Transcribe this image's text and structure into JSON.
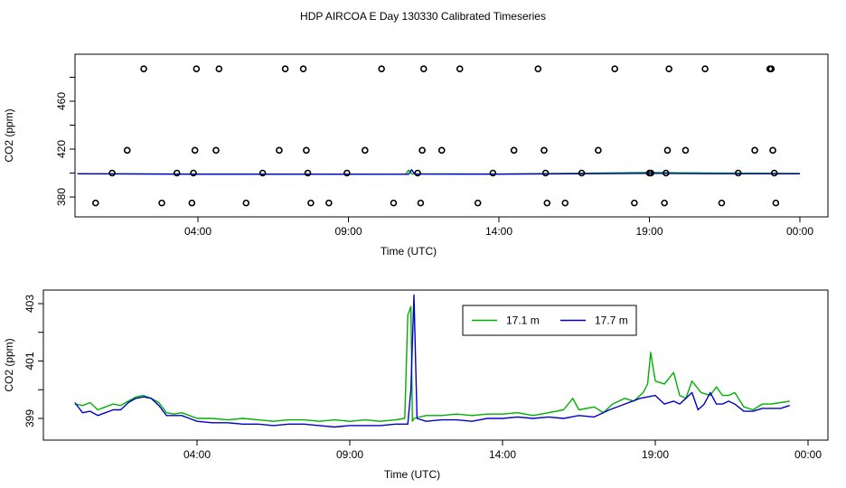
{
  "figure": {
    "title": "HDP AIRCOA E  Day 130330  Calibrated Timeseries"
  },
  "chart_data": [
    {
      "type": "line",
      "xlabel": "Time (UTC)",
      "ylabel": "CO2 (ppm)",
      "x_unit": "hours UTC",
      "xlim": [
        0,
        24
      ],
      "ylim": [
        370,
        490
      ],
      "x_ticks": [
        {
          "value": 4,
          "label": "04:00"
        },
        {
          "value": 9,
          "label": "09:00"
        },
        {
          "value": 14,
          "label": "14:00"
        },
        {
          "value": 19,
          "label": "19:00"
        },
        {
          "value": 24,
          "label": "00:00"
        }
      ],
      "y_ticks": [
        {
          "value": 380,
          "label": "380"
        },
        {
          "value": 420,
          "label": "420"
        },
        {
          "value": 460,
          "label": "460"
        }
      ],
      "grid": false,
      "series": [
        {
          "color": "#00b000",
          "values": [
            [
              0.0,
              399.5
            ],
            [
              4.0,
              399.2
            ],
            [
              10.9,
              399.0
            ],
            [
              11.0,
              402.5
            ],
            [
              11.1,
              399.3
            ],
            [
              14.0,
              399.2
            ],
            [
              16.0,
              399.6
            ],
            [
              19.0,
              400.5
            ],
            [
              21.0,
              400.0
            ],
            [
              24.0,
              399.6
            ]
          ]
        },
        {
          "color": "#0000cc",
          "values": [
            [
              0.0,
              399.4
            ],
            [
              4.0,
              399.0
            ],
            [
              11.0,
              399.0
            ],
            [
              11.1,
              402.8
            ],
            [
              11.2,
              399.2
            ],
            [
              14.0,
              399.1
            ],
            [
              19.0,
              399.8
            ],
            [
              21.0,
              399.5
            ],
            [
              24.0,
              399.4
            ]
          ]
        }
      ],
      "points": [
        {
          "x": 0.6,
          "y": 375
        },
        {
          "x": 1.15,
          "y": 400
        },
        {
          "x": 1.65,
          "y": 419
        },
        {
          "x": 2.2,
          "y": 487
        },
        {
          "x": 2.8,
          "y": 375
        },
        {
          "x": 3.3,
          "y": 400
        },
        {
          "x": 3.8,
          "y": 375
        },
        {
          "x": 3.85,
          "y": 400
        },
        {
          "x": 3.9,
          "y": 419
        },
        {
          "x": 3.95,
          "y": 487
        },
        {
          "x": 4.6,
          "y": 419
        },
        {
          "x": 4.7,
          "y": 487
        },
        {
          "x": 5.6,
          "y": 375
        },
        {
          "x": 6.15,
          "y": 400
        },
        {
          "x": 6.7,
          "y": 419
        },
        {
          "x": 6.9,
          "y": 487
        },
        {
          "x": 7.5,
          "y": 487
        },
        {
          "x": 7.6,
          "y": 419
        },
        {
          "x": 7.65,
          "y": 400
        },
        {
          "x": 7.75,
          "y": 375
        },
        {
          "x": 8.35,
          "y": 375
        },
        {
          "x": 8.95,
          "y": 400
        },
        {
          "x": 9.55,
          "y": 419
        },
        {
          "x": 10.1,
          "y": 487
        },
        {
          "x": 10.5,
          "y": 375
        },
        {
          "x": 11.3,
          "y": 400
        },
        {
          "x": 11.4,
          "y": 375
        },
        {
          "x": 11.45,
          "y": 419
        },
        {
          "x": 11.5,
          "y": 487
        },
        {
          "x": 12.1,
          "y": 419
        },
        {
          "x": 12.7,
          "y": 487
        },
        {
          "x": 13.3,
          "y": 375
        },
        {
          "x": 13.8,
          "y": 400
        },
        {
          "x": 14.5,
          "y": 419
        },
        {
          "x": 15.3,
          "y": 487
        },
        {
          "x": 15.5,
          "y": 419
        },
        {
          "x": 15.55,
          "y": 400
        },
        {
          "x": 15.6,
          "y": 375
        },
        {
          "x": 16.2,
          "y": 375
        },
        {
          "x": 16.75,
          "y": 400
        },
        {
          "x": 17.3,
          "y": 419
        },
        {
          "x": 17.85,
          "y": 487
        },
        {
          "x": 18.5,
          "y": 375
        },
        {
          "x": 19.05,
          "y": 400
        },
        {
          "x": 19.6,
          "y": 419
        },
        {
          "x": 19.65,
          "y": 487
        },
        {
          "x": 20.2,
          "y": 419
        },
        {
          "x": 20.85,
          "y": 487
        },
        {
          "x": 21.4,
          "y": 375
        },
        {
          "x": 21.95,
          "y": 400
        },
        {
          "x": 22.5,
          "y": 419
        },
        {
          "x": 23.0,
          "y": 487
        },
        {
          "x": 23.1,
          "y": 419
        },
        {
          "x": 23.15,
          "y": 400
        },
        {
          "x": 23.2,
          "y": 375
        },
        {
          "x": 19.0,
          "y": 400
        },
        {
          "x": 19.55,
          "y": 400
        },
        {
          "x": 19.5,
          "y": 375
        },
        {
          "x": 23.05,
          "y": 487
        }
      ]
    },
    {
      "type": "line",
      "xlabel": "Time (UTC)",
      "ylabel": "CO2 (ppm)",
      "x_unit": "hours UTC",
      "xlim": [
        0,
        24
      ],
      "ylim": [
        398.3,
        403.4
      ],
      "x_ticks": [
        {
          "value": 4,
          "label": "04:00"
        },
        {
          "value": 9,
          "label": "09:00"
        },
        {
          "value": 14,
          "label": "14:00"
        },
        {
          "value": 19,
          "label": "19:00"
        },
        {
          "value": 24,
          "label": "00:00"
        }
      ],
      "y_ticks": [
        {
          "value": 399,
          "label": "399"
        },
        {
          "value": 401,
          "label": "401"
        },
        {
          "value": 403,
          "label": "403"
        }
      ],
      "grid": false,
      "legend": {
        "position": "top-center",
        "entries": [
          {
            "label": "17.1 m",
            "color": "#00b000"
          },
          {
            "label": "17.7 m",
            "color": "#0000cc"
          }
        ]
      },
      "series": [
        {
          "name": "17.1 m",
          "color": "#00b000",
          "values": [
            [
              0.0,
              399.5
            ],
            [
              0.25,
              399.45
            ],
            [
              0.5,
              399.55
            ],
            [
              0.75,
              399.3
            ],
            [
              1.0,
              399.4
            ],
            [
              1.25,
              399.5
            ],
            [
              1.5,
              399.45
            ],
            [
              1.75,
              399.6
            ],
            [
              2.0,
              399.75
            ],
            [
              2.25,
              399.8
            ],
            [
              2.5,
              399.7
            ],
            [
              2.75,
              399.55
            ],
            [
              3.0,
              399.2
            ],
            [
              3.25,
              399.15
            ],
            [
              3.5,
              399.2
            ],
            [
              3.75,
              399.1
            ],
            [
              4.0,
              399.0
            ],
            [
              4.5,
              399.0
            ],
            [
              5.0,
              398.95
            ],
            [
              5.5,
              399.0
            ],
            [
              6.0,
              398.95
            ],
            [
              6.5,
              398.9
            ],
            [
              7.0,
              398.95
            ],
            [
              7.5,
              398.95
            ],
            [
              8.0,
              398.9
            ],
            [
              8.5,
              398.95
            ],
            [
              9.0,
              398.9
            ],
            [
              9.5,
              398.95
            ],
            [
              10.0,
              398.9
            ],
            [
              10.5,
              398.95
            ],
            [
              10.8,
              399.0
            ],
            [
              10.9,
              402.6
            ],
            [
              11.0,
              402.9
            ],
            [
              11.05,
              398.9
            ],
            [
              11.1,
              399.0
            ],
            [
              11.5,
              399.1
            ],
            [
              12.0,
              399.1
            ],
            [
              12.5,
              399.15
            ],
            [
              13.0,
              399.1
            ],
            [
              13.5,
              399.15
            ],
            [
              14.0,
              399.15
            ],
            [
              14.5,
              399.2
            ],
            [
              15.0,
              399.1
            ],
            [
              15.5,
              399.2
            ],
            [
              16.0,
              399.3
            ],
            [
              16.3,
              399.7
            ],
            [
              16.5,
              399.3
            ],
            [
              17.0,
              399.4
            ],
            [
              17.3,
              399.2
            ],
            [
              17.6,
              399.5
            ],
            [
              18.0,
              399.7
            ],
            [
              18.3,
              399.6
            ],
            [
              18.6,
              399.9
            ],
            [
              18.75,
              400.2
            ],
            [
              18.85,
              401.3
            ],
            [
              19.0,
              400.3
            ],
            [
              19.3,
              400.2
            ],
            [
              19.6,
              400.6
            ],
            [
              19.8,
              399.8
            ],
            [
              20.0,
              399.7
            ],
            [
              20.2,
              400.3
            ],
            [
              20.5,
              399.9
            ],
            [
              20.8,
              399.8
            ],
            [
              21.0,
              400.1
            ],
            [
              21.2,
              399.8
            ],
            [
              21.4,
              399.8
            ],
            [
              21.6,
              399.9
            ],
            [
              21.9,
              399.4
            ],
            [
              22.2,
              399.3
            ],
            [
              22.5,
              399.5
            ],
            [
              22.8,
              399.5
            ],
            [
              23.1,
              399.55
            ],
            [
              23.4,
              399.6
            ]
          ]
        },
        {
          "name": "17.7 m",
          "color": "#0000cc",
          "values": [
            [
              0.0,
              399.55
            ],
            [
              0.25,
              399.2
            ],
            [
              0.5,
              399.25
            ],
            [
              0.75,
              399.1
            ],
            [
              1.0,
              399.2
            ],
            [
              1.25,
              399.3
            ],
            [
              1.5,
              399.3
            ],
            [
              1.75,
              399.55
            ],
            [
              2.0,
              399.7
            ],
            [
              2.25,
              399.75
            ],
            [
              2.5,
              399.7
            ],
            [
              2.75,
              399.45
            ],
            [
              3.0,
              399.1
            ],
            [
              3.25,
              399.1
            ],
            [
              3.5,
              399.1
            ],
            [
              3.75,
              399.0
            ],
            [
              4.0,
              398.9
            ],
            [
              4.5,
              398.85
            ],
            [
              5.0,
              398.85
            ],
            [
              5.5,
              398.8
            ],
            [
              6.0,
              398.8
            ],
            [
              6.5,
              398.75
            ],
            [
              7.0,
              398.8
            ],
            [
              7.5,
              398.8
            ],
            [
              8.0,
              398.75
            ],
            [
              8.5,
              398.7
            ],
            [
              9.0,
              398.75
            ],
            [
              9.5,
              398.75
            ],
            [
              10.0,
              398.75
            ],
            [
              10.5,
              398.8
            ],
            [
              10.9,
              398.8
            ],
            [
              11.0,
              400.0
            ],
            [
              11.1,
              403.3
            ],
            [
              11.2,
              399.0
            ],
            [
              11.5,
              398.9
            ],
            [
              12.0,
              398.95
            ],
            [
              12.5,
              398.95
            ],
            [
              13.0,
              398.9
            ],
            [
              13.5,
              399.0
            ],
            [
              14.0,
              399.0
            ],
            [
              14.5,
              399.05
            ],
            [
              15.0,
              399.0
            ],
            [
              15.5,
              399.05
            ],
            [
              16.0,
              399.0
            ],
            [
              16.5,
              399.1
            ],
            [
              17.0,
              399.05
            ],
            [
              17.5,
              399.3
            ],
            [
              18.0,
              399.5
            ],
            [
              18.5,
              399.7
            ],
            [
              19.0,
              399.8
            ],
            [
              19.3,
              399.5
            ],
            [
              19.6,
              399.6
            ],
            [
              19.8,
              399.5
            ],
            [
              20.0,
              399.7
            ],
            [
              20.2,
              399.9
            ],
            [
              20.4,
              399.3
            ],
            [
              20.6,
              399.5
            ],
            [
              20.8,
              399.9
            ],
            [
              21.0,
              399.5
            ],
            [
              21.2,
              399.5
            ],
            [
              21.4,
              399.6
            ],
            [
              21.6,
              399.5
            ],
            [
              21.9,
              399.25
            ],
            [
              22.2,
              399.25
            ],
            [
              22.5,
              399.35
            ],
            [
              22.8,
              399.35
            ],
            [
              23.1,
              399.35
            ],
            [
              23.4,
              399.45
            ]
          ]
        }
      ]
    }
  ]
}
